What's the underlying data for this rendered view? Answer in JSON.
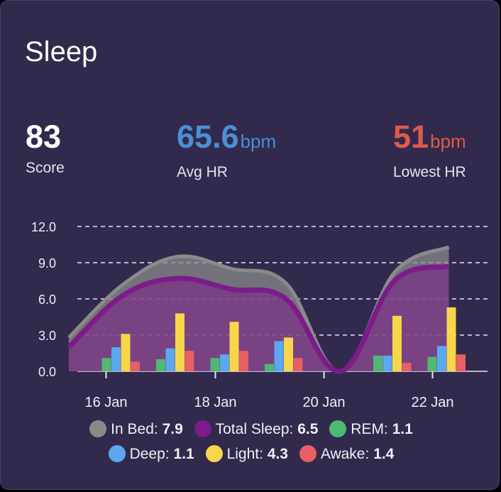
{
  "card": {
    "title": "Sleep"
  },
  "stats": {
    "score": {
      "value": "83",
      "label": "Score",
      "color": "#ffffff"
    },
    "avg_hr": {
      "value": "65.6",
      "unit": "bpm",
      "label": "Avg HR",
      "color": "#4a8fd8"
    },
    "lowest_hr": {
      "value": "51",
      "unit": "bpm",
      "label": "Lowest HR",
      "color": "#e05a4a"
    }
  },
  "legend": {
    "in_bed": {
      "label": "In Bed:",
      "value": "7.9",
      "color": "#8a8a8a"
    },
    "total_sleep": {
      "label": "Total Sleep:",
      "value": "6.5",
      "color": "#7c1b8a"
    },
    "rem": {
      "label": "REM:",
      "value": "1.1",
      "color": "#4fb872"
    },
    "deep": {
      "label": "Deep:",
      "value": "1.1",
      "color": "#5aa8f0"
    },
    "light": {
      "label": "Light:",
      "value": "4.3",
      "color": "#f7d64a"
    },
    "awake": {
      "label": "Awake:",
      "value": "1.4",
      "color": "#e85f66"
    }
  },
  "chart_data": {
    "type": "bar",
    "x_tick_labels": [
      "16 Jan",
      "18 Jan",
      "20 Jan",
      "22 Jan"
    ],
    "y_tick_labels": [
      "0.0",
      "3.0",
      "6.0",
      "9.0",
      "12.0"
    ],
    "ylim": [
      0,
      12
    ],
    "grid": true,
    "x": [
      "15 Jan",
      "16 Jan",
      "17 Jan",
      "18 Jan",
      "19 Jan",
      "20 Jan",
      "21 Jan",
      "22 Jan"
    ],
    "area_series": [
      {
        "name": "In Bed",
        "color": "#8a8a8a",
        "values": [
          2.8,
          7.2,
          9.5,
          8.5,
          7.3,
          0,
          8.2,
          10.3
        ]
      },
      {
        "name": "Total Sleep",
        "color": "#7c1b8a",
        "values": [
          2.0,
          6.3,
          7.7,
          6.8,
          6.0,
          0,
          7.5,
          8.7
        ]
      }
    ],
    "bar_dates": [
      "16 Jan",
      "17 Jan",
      "18 Jan",
      "19 Jan",
      "21 Jan",
      "22 Jan"
    ],
    "bar_series": [
      {
        "name": "REM",
        "color": "#4fb872",
        "values": [
          1.1,
          1.0,
          1.1,
          0.6,
          1.3,
          1.2
        ]
      },
      {
        "name": "Deep",
        "color": "#5aa8f0",
        "values": [
          2.0,
          1.9,
          1.4,
          2.5,
          1.3,
          2.1
        ]
      },
      {
        "name": "Light",
        "color": "#f7d64a",
        "values": [
          3.1,
          4.8,
          4.1,
          2.8,
          4.6,
          5.3
        ]
      },
      {
        "name": "Awake",
        "color": "#e85f66",
        "values": [
          0.8,
          1.7,
          1.7,
          1.1,
          0.7,
          1.4
        ]
      }
    ]
  }
}
